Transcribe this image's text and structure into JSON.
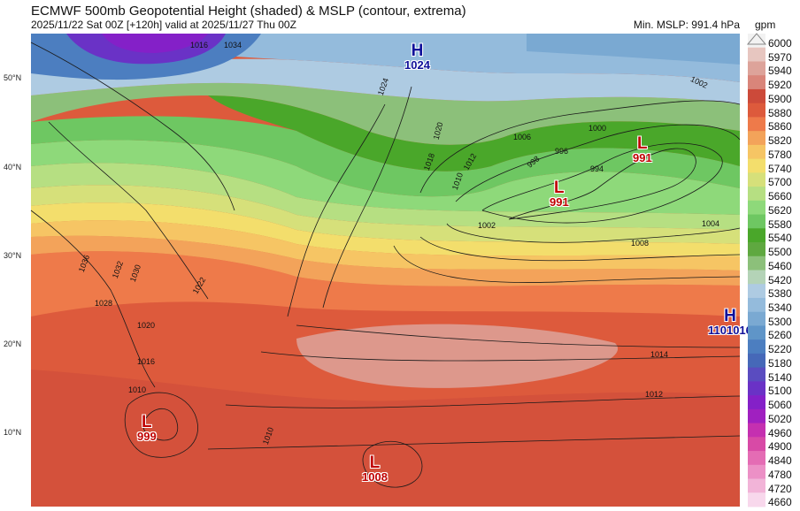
{
  "header": {
    "title": "ECMWF 500mb Geopotential Height (shaded) & MSLP (contour, extrema)",
    "subtitle": "2025/11/22 Sat 00Z [+120h] valid at 2025/11/27 Thu 00Z",
    "min_mslp": "Min. MSLP: 991.4 hPa"
  },
  "colorbar": {
    "unit": "gpm",
    "levels": [
      "6000",
      "5970",
      "5940",
      "5920",
      "5900",
      "5880",
      "5860",
      "5820",
      "5780",
      "5740",
      "5700",
      "5660",
      "5620",
      "5580",
      "5540",
      "5500",
      "5460",
      "5420",
      "5380",
      "5340",
      "5300",
      "5260",
      "5220",
      "5180",
      "5140",
      "5100",
      "5060",
      "5020",
      "4960",
      "4900",
      "4840",
      "4780",
      "4720",
      "4660"
    ],
    "colors": [
      "#f2f2f2",
      "#e7c6c0",
      "#dda39a",
      "#d9857a",
      "#cc4a3a",
      "#dd5a3c",
      "#ee7a4a",
      "#f3a35a",
      "#f6c564",
      "#f3de6c",
      "#d6e07a",
      "#b6df82",
      "#8ed97a",
      "#6ec762",
      "#4aa72a",
      "#5fa840",
      "#8cc07a",
      "#b4d3b7",
      "#aecbe2",
      "#94bbdc",
      "#7aa9d2",
      "#5f95c8",
      "#4c7ec0",
      "#4668b8",
      "#5a4cc0",
      "#6a32c6",
      "#8420c8",
      "#a020c0",
      "#c530b0",
      "#d84aa6",
      "#e46cb4",
      "#ec90c6",
      "#f2b4d8",
      "#f8d8ec"
    ]
  },
  "lat_labels": [
    "50°N",
    "40°N",
    "30°N",
    "20°N",
    "10°N"
  ],
  "pressure_systems": [
    {
      "type": "H",
      "value": "1024",
      "kind": "high"
    },
    {
      "type": "L",
      "value": "991",
      "kind": "low"
    },
    {
      "type": "L",
      "value": "991",
      "kind": "low"
    },
    {
      "type": "H",
      "value": "1101016",
      "kind": "high"
    },
    {
      "type": "L",
      "value": "999",
      "kind": "low"
    },
    {
      "type": "L",
      "value": "1008",
      "kind": "low"
    }
  ],
  "contour_labels": [
    "1016",
    "1034",
    "1024",
    "1002",
    "1000",
    "996",
    "998",
    "994",
    "1006",
    "1004",
    "1008",
    "1012",
    "1014",
    "1010",
    "1018",
    "1020",
    "1022",
    "1028",
    "1030",
    "1032",
    "1036"
  ]
}
